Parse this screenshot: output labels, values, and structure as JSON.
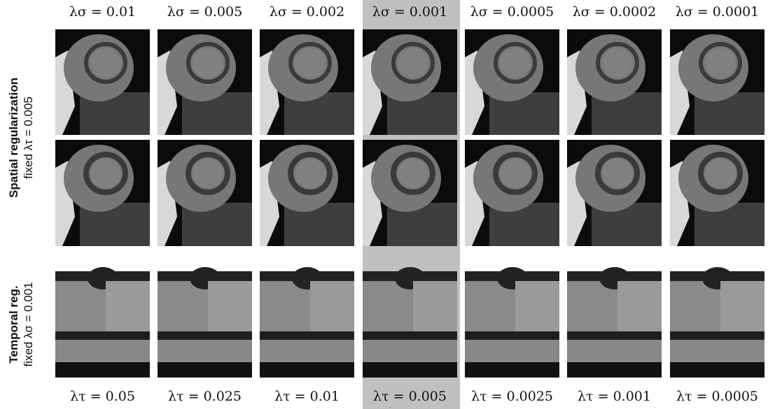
{
  "top_labels": [
    "λσ = 0.01",
    "λσ = 0.005",
    "λσ = 0.002",
    "λσ = 0.001",
    "λσ = 0.0005",
    "λσ = 0.0002",
    "λσ = 0.0001"
  ],
  "bottom_labels": [
    "λτ = 0.05",
    "λτ = 0.025",
    "λτ = 0.01",
    "λτ = 0.005",
    "λτ = 0.0025",
    "λτ = 0.001",
    "λτ = 0.0005"
  ],
  "rows": [
    {
      "title": "Spatial regularization",
      "subtitle": "fixed λτ = 0.005"
    },
    {
      "title": "Temporal reg.",
      "subtitle": "fixed λσ = 0.001"
    }
  ]
}
